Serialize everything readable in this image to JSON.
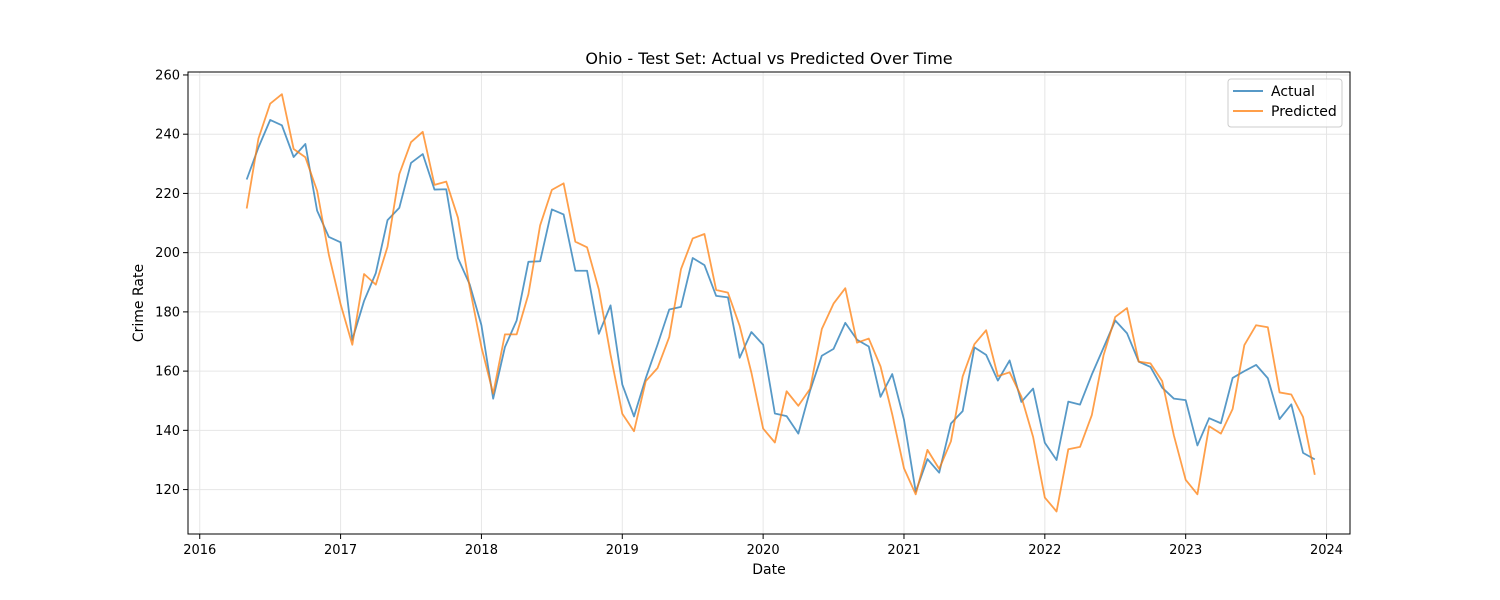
{
  "chart_data": {
    "type": "line",
    "title": "Ohio - Test Set: Actual vs Predicted Over Time",
    "xlabel": "Date",
    "ylabel": "Crime Rate",
    "x_ticks": [
      "2016",
      "2017",
      "2018",
      "2019",
      "2020",
      "2021",
      "2022",
      "2023",
      "2024"
    ],
    "y_ticks": [
      120,
      140,
      160,
      180,
      200,
      220,
      240,
      260
    ],
    "xlim": [
      "2015-12",
      "2024-03"
    ],
    "ylim": [
      105,
      261
    ],
    "grid": true,
    "legend_position": "top-right",
    "x": [
      "2016-05",
      "2016-06",
      "2016-07",
      "2016-08",
      "2016-09",
      "2016-10",
      "2016-11",
      "2016-12",
      "2017-01",
      "2017-02",
      "2017-03",
      "2017-04",
      "2017-05",
      "2017-06",
      "2017-07",
      "2017-08",
      "2017-09",
      "2017-10",
      "2017-11",
      "2017-12",
      "2018-01",
      "2018-02",
      "2018-03",
      "2018-04",
      "2018-05",
      "2018-06",
      "2018-07",
      "2018-08",
      "2018-09",
      "2018-10",
      "2018-11",
      "2018-12",
      "2019-01",
      "2019-02",
      "2019-03",
      "2019-04",
      "2019-05",
      "2019-06",
      "2019-07",
      "2019-08",
      "2019-09",
      "2019-10",
      "2019-11",
      "2019-12",
      "2020-01",
      "2020-02",
      "2020-03",
      "2020-04",
      "2020-05",
      "2020-06",
      "2020-07",
      "2020-08",
      "2020-09",
      "2020-10",
      "2020-11",
      "2020-12",
      "2021-01",
      "2021-02",
      "2021-03",
      "2021-04",
      "2021-05",
      "2021-06",
      "2021-07",
      "2021-08",
      "2021-09",
      "2021-10",
      "2021-11",
      "2021-12",
      "2022-01",
      "2022-02",
      "2022-03",
      "2022-04",
      "2022-05",
      "2022-06",
      "2022-07",
      "2022-08",
      "2022-09",
      "2022-10",
      "2022-11",
      "2022-12",
      "2023-01",
      "2023-02",
      "2023-03",
      "2023-04",
      "2023-05",
      "2023-06",
      "2023-07",
      "2023-08",
      "2023-09",
      "2023-10",
      "2023-11",
      "2023-12"
    ],
    "series": [
      {
        "name": "Actual",
        "color": "#1f77b4",
        "values": [
          224.7,
          235.5,
          244.8,
          243.0,
          232.3,
          236.7,
          214.2,
          205.3,
          203.5,
          170.6,
          183.7,
          193.1,
          211.0,
          215.1,
          230.3,
          233.3,
          221.3,
          221.4,
          198.1,
          189.3,
          175.5,
          150.7,
          168.1,
          177.1,
          196.9,
          197.1,
          214.6,
          212.9,
          193.9,
          193.9,
          172.6,
          182.2,
          155.5,
          144.7,
          157.6,
          168.9,
          180.8,
          181.7,
          198.2,
          195.8,
          185.4,
          184.9,
          164.5,
          173.2,
          168.9,
          145.7,
          144.8,
          138.9,
          153.4,
          165.2,
          167.5,
          176.3,
          170.6,
          168.3,
          151.3,
          159.0,
          143.6,
          119.3,
          130.3,
          125.7,
          142.3,
          146.5,
          168.0,
          165.5,
          156.8,
          163.6,
          149.6,
          154.1,
          135.8,
          130.0,
          149.7,
          148.7,
          158.8,
          167.9,
          177.1,
          172.8,
          163.2,
          161.4,
          154.4,
          150.7,
          150.2,
          134.9,
          144.1,
          142.4,
          157.7,
          160.0,
          162.1,
          157.6,
          143.8,
          148.8,
          132.4,
          130.2
        ]
      },
      {
        "name": "Predicted",
        "color": "#ff7f0e",
        "values": [
          214.9,
          238.5,
          250.3,
          253.5,
          235.0,
          232.2,
          220.9,
          199.3,
          182.6,
          168.9,
          192.8,
          189.2,
          202.0,
          226.5,
          237.3,
          240.8,
          222.9,
          224.0,
          211.8,
          188.3,
          168.1,
          152.4,
          172.4,
          172.4,
          185.9,
          209.2,
          221.2,
          223.4,
          203.7,
          201.8,
          187.6,
          165.5,
          145.6,
          139.7,
          156.6,
          161.0,
          171.5,
          194.4,
          204.8,
          206.3,
          187.4,
          186.5,
          175.3,
          159.5,
          140.6,
          135.9,
          153.2,
          148.3,
          154.0,
          174.2,
          182.8,
          188.0,
          169.6,
          171.0,
          161.6,
          145.4,
          127.2,
          118.4,
          133.4,
          127.0,
          136.3,
          158.2,
          169.1,
          173.8,
          158.3,
          159.6,
          151.4,
          137.8,
          117.3,
          112.6,
          133.6,
          134.4,
          145.1,
          165.3,
          178.3,
          181.3,
          163.2,
          162.6,
          156.6,
          138.2,
          123.3,
          118.4,
          141.4,
          138.9,
          147.2,
          168.8,
          175.5,
          174.8,
          152.8,
          152.1,
          144.5,
          125.0
        ]
      }
    ]
  }
}
